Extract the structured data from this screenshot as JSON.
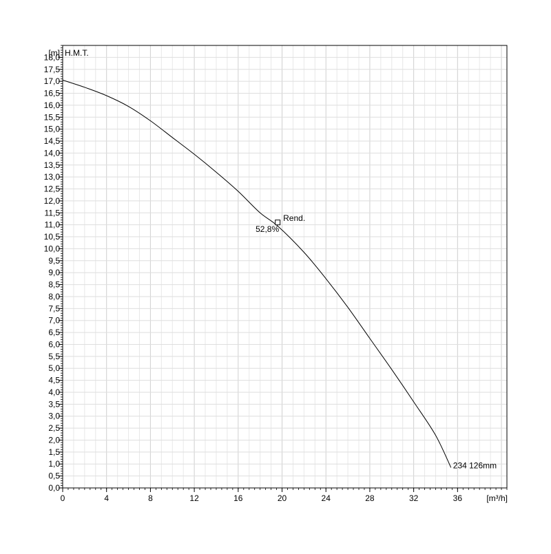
{
  "chart_data": {
    "type": "line",
    "ylabel_unit": "[m]",
    "ylabel": "H.M.T.",
    "xlabel_unit": "[m³/h]",
    "xlim": [
      0,
      40.5
    ],
    "ylim": [
      0,
      18.5
    ],
    "x_ticks": [
      0,
      4,
      8,
      12,
      16,
      20,
      24,
      28,
      32,
      36
    ],
    "x_tick_labels": [
      "0",
      "4",
      "8",
      "12",
      "16",
      "20",
      "24",
      "28",
      "32",
      "36"
    ],
    "y_ticks": [
      0,
      0.5,
      1,
      1.5,
      2,
      2.5,
      3,
      3.5,
      4,
      4.5,
      5,
      5.5,
      6,
      6.5,
      7,
      7.5,
      8,
      8.5,
      9,
      9.5,
      10,
      10.5,
      11,
      11.5,
      12,
      12.5,
      13,
      13.5,
      14,
      14.5,
      15,
      15.5,
      16,
      16.5,
      17,
      17.5,
      18
    ],
    "y_tick_labels": [
      "0,0",
      "0,5",
      "1,0",
      "1,5",
      "2,0",
      "2,5",
      "3,0",
      "3,5",
      "4,0",
      "4,5",
      "5,0",
      "5,5",
      "6,0",
      "6,5",
      "7,0",
      "7,5",
      "8,0",
      "8,5",
      "9,0",
      "9,5",
      "10,0",
      "10,5",
      "11,0",
      "11,5",
      "12,0",
      "12,5",
      "13,0",
      "13,5",
      "14,0",
      "14,5",
      "15,0",
      "15,5",
      "16,0",
      "16,5",
      "17,0",
      "17,5",
      "18,0"
    ],
    "grid": true,
    "series": [
      {
        "name": "234 126mm",
        "x": [
          0,
          2,
          4,
          6,
          8,
          10,
          12,
          14,
          16,
          18,
          19.6,
          22,
          24,
          26,
          28,
          30,
          32,
          34,
          35.4
        ],
        "y": [
          17.05,
          16.75,
          16.4,
          15.95,
          15.35,
          14.65,
          13.95,
          13.2,
          12.4,
          11.5,
          10.95,
          9.85,
          8.75,
          7.55,
          6.25,
          4.95,
          3.6,
          2.2,
          0.85
        ]
      }
    ],
    "annotations": {
      "marker": {
        "x": 19.6,
        "y": 11.1,
        "label": "Rend.",
        "value_label": "52,8%"
      },
      "curve_label": "234 126mm"
    }
  }
}
